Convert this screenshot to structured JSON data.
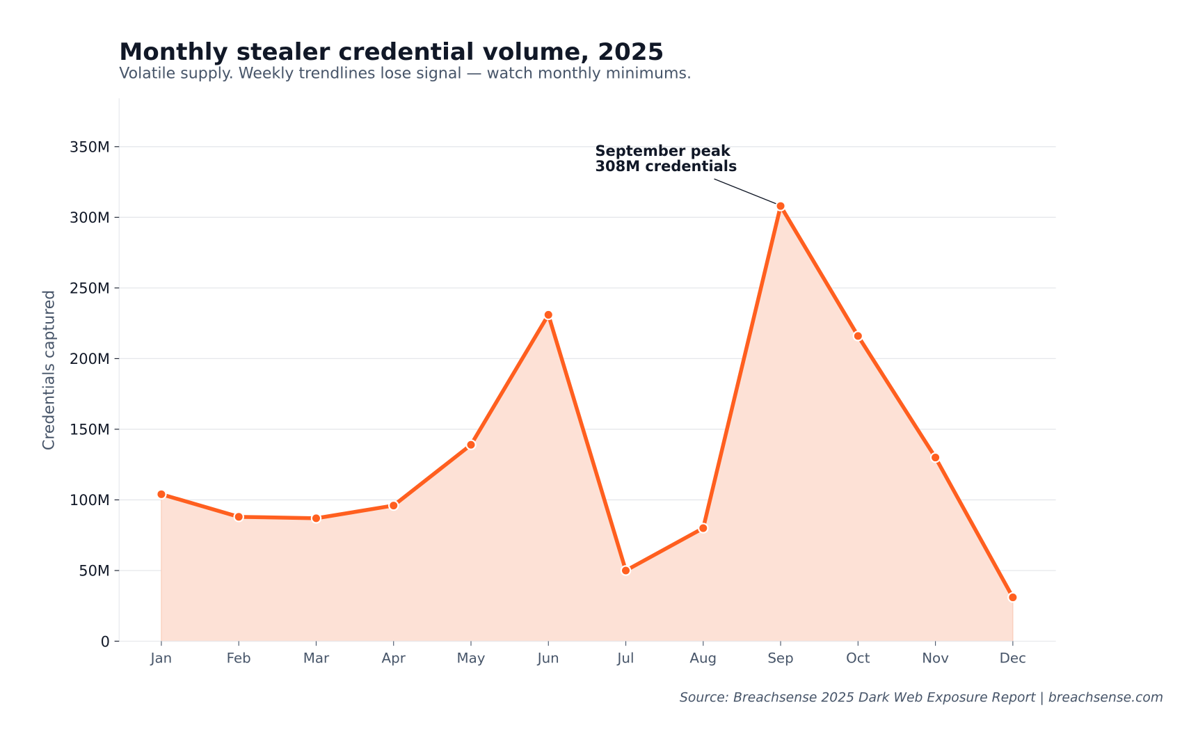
{
  "chart_data": {
    "type": "area",
    "title": "Monthly stealer credential volume, 2025",
    "subtitle": "Volatile supply. Weekly trendlines lose signal — watch monthly minimums.",
    "xlabel": "",
    "ylabel": "Credentials captured",
    "categories": [
      "Jan",
      "Feb",
      "Mar",
      "Apr",
      "May",
      "Jun",
      "Jul",
      "Aug",
      "Sep",
      "Oct",
      "Nov",
      "Dec"
    ],
    "values": [
      104,
      88,
      87,
      96,
      139,
      231,
      50,
      80,
      308,
      216,
      130,
      31
    ],
    "value_unit": "M",
    "ylim": [
      0,
      385
    ],
    "yticks": [
      0,
      50,
      100,
      150,
      200,
      250,
      300,
      350
    ],
    "ytick_labels": [
      "0",
      "50M",
      "100M",
      "150M",
      "200M",
      "250M",
      "300M",
      "350M"
    ],
    "grid": "horizontal",
    "annotation": {
      "lines": [
        "September peak",
        "308M credentials"
      ],
      "target": "Sep"
    },
    "source": "Source: Breachsense 2025 Dark Web Exposure Report  |  breachsense.com",
    "colors": {
      "line": "#ff5f1f",
      "fill": "#fde1d6",
      "grid": "#e5e7eb",
      "title": "#111827",
      "muted": "#475569"
    }
  }
}
